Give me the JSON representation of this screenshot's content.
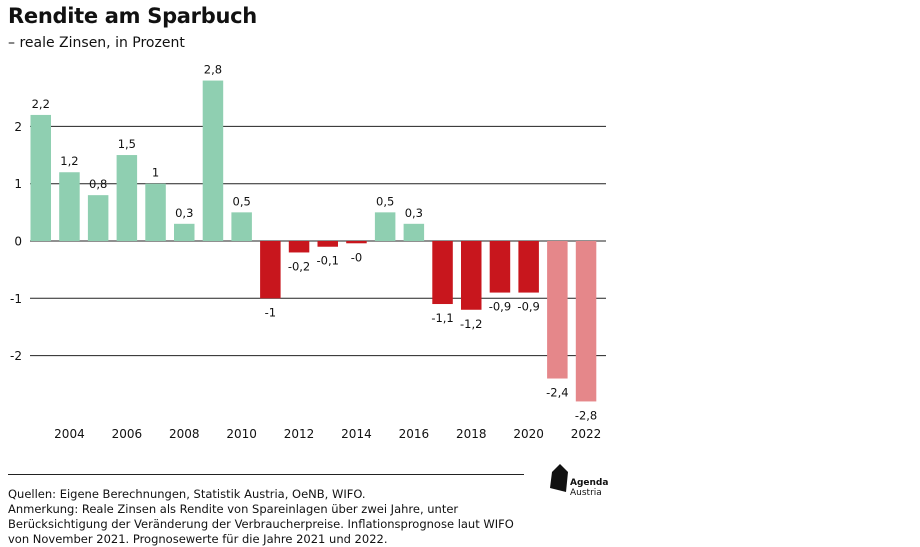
{
  "chart_data": {
    "type": "bar",
    "title": "Rendite am Sparbuch",
    "subtitle": "– reale Zinsen, in Prozent",
    "xlabel": "",
    "ylabel": "",
    "ylim": [
      -3,
      3
    ],
    "yticks": [
      "2",
      "1",
      "0",
      "-1",
      "-2"
    ],
    "grid": true,
    "categories": [
      "2003",
      "2004",
      "2005",
      "2006",
      "2007",
      "2008",
      "2009",
      "2010",
      "2011",
      "2012",
      "2013",
      "2014",
      "2015",
      "2016",
      "2017",
      "2018",
      "2019",
      "2020",
      "2021",
      "2022"
    ],
    "xtick_labels": [
      "2004",
      "2006",
      "2008",
      "2010",
      "2012",
      "2014",
      "2016",
      "2018",
      "2020",
      "2022"
    ],
    "values": [
      2.2,
      1.2,
      0.8,
      1.5,
      1.0,
      0.3,
      2.8,
      0.5,
      -1.0,
      -0.2,
      -0.1,
      -0.04,
      0.5,
      0.3,
      -1.1,
      -1.2,
      -0.9,
      -0.9,
      -2.4,
      -2.8
    ],
    "data_labels": [
      "2,2",
      "1,2",
      "0,8",
      "1,5",
      "1",
      "0,3",
      "2,8",
      "0,5",
      "-1",
      "-0,2",
      "-0,1",
      "-0",
      "0,5",
      "0,3",
      "-1,1",
      "-1,2",
      "-0,9",
      "-0,9",
      "-2,4",
      "-2,8"
    ],
    "forecast": [
      false,
      false,
      false,
      false,
      false,
      false,
      false,
      false,
      false,
      false,
      false,
      false,
      false,
      false,
      false,
      false,
      false,
      false,
      true,
      true
    ],
    "colors": {
      "positive": "#8fcfb1",
      "negative": "#c8161d",
      "forecast": "#e5878a",
      "grid": "#222222"
    }
  },
  "footnote": {
    "line1": "Quellen: Eigene Berechnungen, Statistik Austria, OeNB, WIFO.",
    "line2": "Anmerkung: Reale Zinsen als Rendite von Spareinlagen über zwei Jahre, unter",
    "line3": "Berücksichtigung der Veränderung der Verbraucherpreise. Inflationsprognose laut WIFO",
    "line4": "von November 2021. Prognosewerte für die Jahre 2021 und 2022."
  },
  "logo": {
    "name": "Agenda",
    "sub": "Austria"
  }
}
